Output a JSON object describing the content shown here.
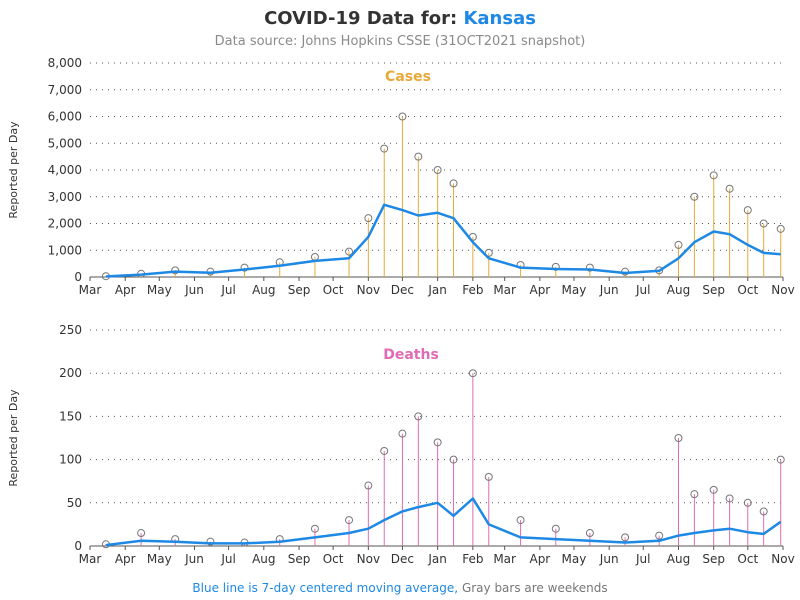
{
  "header": {
    "title_prefix": "COVID-19 Data for:",
    "title_state": "Kansas",
    "subtitle": "Data source: Johns Hopkins CSSE (31OCT2021 snapshot)"
  },
  "footer": {
    "blue_note": "Blue line is 7-day centered moving average,",
    "gray_note": "Gray bars are weekends"
  },
  "colors": {
    "cases": "#e8a93a",
    "deaths": "#e06bb4",
    "moving_average": "#1e88e5",
    "weekend": "#999999",
    "marker_stroke": "#777777"
  },
  "chart_data": [
    {
      "type": "bar",
      "title": "Cases",
      "ylabel": "Reported per Day",
      "ylim": [
        0,
        8000
      ],
      "yticks": [
        "0",
        "1,000",
        "2,000",
        "3,000",
        "4,000",
        "5,000",
        "6,000",
        "7,000",
        "8,000"
      ],
      "ytick_values": [
        0,
        1000,
        2000,
        3000,
        4000,
        5000,
        6000,
        7000,
        8000
      ],
      "xticks": [
        "Mar",
        "Apr",
        "May",
        "Jun",
        "Jul",
        "Aug",
        "Sep",
        "Oct",
        "Nov",
        "Dec",
        "Jan",
        "Feb",
        "Mar",
        "Apr",
        "May",
        "Jun",
        "Jul",
        "Aug",
        "Sep",
        "Oct",
        "Nov"
      ],
      "x": [
        "2020-03-15",
        "2020-04-15",
        "2020-05-15",
        "2020-06-15",
        "2020-07-15",
        "2020-08-15",
        "2020-09-15",
        "2020-10-15",
        "2020-11-01",
        "2020-11-15",
        "2020-12-01",
        "2020-12-15",
        "2021-01-01",
        "2021-01-15",
        "2021-02-01",
        "2021-02-15",
        "2021-03-15",
        "2021-04-15",
        "2021-05-15",
        "2021-06-15",
        "2021-07-15",
        "2021-08-01",
        "2021-08-15",
        "2021-09-01",
        "2021-09-15",
        "2021-10-01",
        "2021-10-15",
        "2021-10-30"
      ],
      "series": [
        {
          "name": "Reported per Day",
          "values": [
            30,
            120,
            250,
            200,
            350,
            550,
            750,
            950,
            2200,
            4800,
            6000,
            4500,
            4000,
            3500,
            1500,
            900,
            450,
            380,
            350,
            200,
            250,
            1200,
            3000,
            3800,
            3300,
            2500,
            2000,
            1800
          ]
        },
        {
          "name": "7-day moving average",
          "values": [
            20,
            90,
            200,
            160,
            280,
            420,
            600,
            700,
            1500,
            2700,
            2500,
            2300,
            2400,
            2200,
            1300,
            700,
            350,
            300,
            280,
            150,
            230,
            700,
            1300,
            1700,
            1600,
            1200,
            900,
            850
          ]
        }
      ]
    },
    {
      "type": "bar",
      "title": "Deaths",
      "ylabel": "Reported per Day",
      "ylim": [
        0,
        250
      ],
      "yticks": [
        "0",
        "50",
        "100",
        "150",
        "200",
        "250"
      ],
      "ytick_values": [
        0,
        50,
        100,
        150,
        200,
        250
      ],
      "xticks": [
        "Mar",
        "Apr",
        "May",
        "Jun",
        "Jul",
        "Aug",
        "Sep",
        "Oct",
        "Nov",
        "Dec",
        "Jan",
        "Feb",
        "Mar",
        "Apr",
        "May",
        "Jun",
        "Jul",
        "Aug",
        "Sep",
        "Oct",
        "Nov"
      ],
      "x": [
        "2020-03-15",
        "2020-04-15",
        "2020-05-15",
        "2020-06-15",
        "2020-07-15",
        "2020-08-15",
        "2020-09-15",
        "2020-10-15",
        "2020-11-01",
        "2020-11-15",
        "2020-12-01",
        "2020-12-15",
        "2021-01-01",
        "2021-01-15",
        "2021-02-01",
        "2021-02-15",
        "2021-03-15",
        "2021-04-15",
        "2021-05-15",
        "2021-06-15",
        "2021-07-15",
        "2021-08-01",
        "2021-08-15",
        "2021-09-01",
        "2021-09-15",
        "2021-10-01",
        "2021-10-15",
        "2021-10-30"
      ],
      "series": [
        {
          "name": "Reported per Day",
          "values": [
            2,
            15,
            8,
            5,
            4,
            8,
            20,
            30,
            70,
            110,
            130,
            150,
            120,
            100,
            200,
            80,
            30,
            20,
            15,
            10,
            12,
            125,
            60,
            65,
            55,
            50,
            40,
            100
          ]
        },
        {
          "name": "7-day moving average",
          "values": [
            1,
            6,
            5,
            3,
            3,
            5,
            10,
            15,
            20,
            30,
            40,
            45,
            50,
            35,
            55,
            25,
            10,
            8,
            6,
            4,
            6,
            12,
            15,
            18,
            20,
            16,
            14,
            28
          ]
        }
      ]
    }
  ]
}
